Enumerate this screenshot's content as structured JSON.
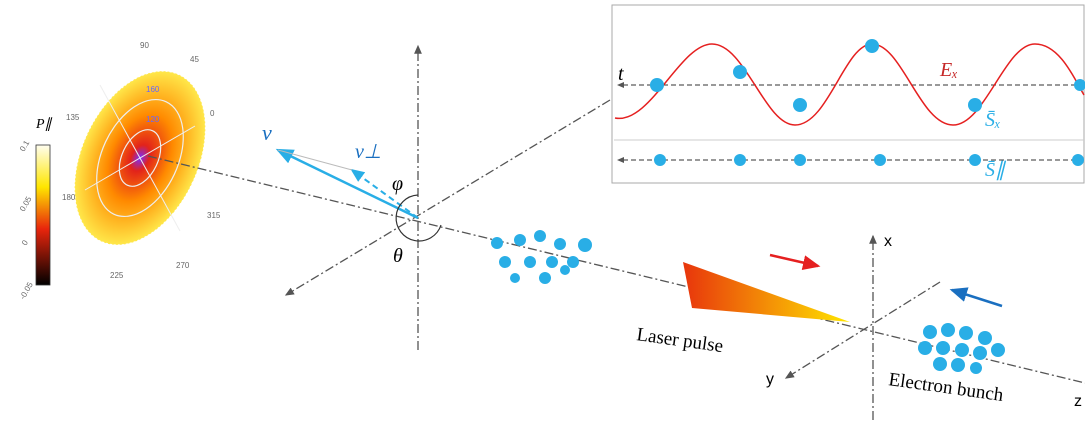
{
  "colorbar": {
    "label": "P∥",
    "ticks": [
      "0.1",
      "0.05",
      "0",
      "-0.05"
    ]
  },
  "polar": {
    "angle_labels": [
      "90",
      "45",
      "0",
      "315",
      "270",
      "225",
      "180",
      "135"
    ],
    "radial_labels": [
      "160",
      "120"
    ]
  },
  "vectors": {
    "v": "v",
    "v_perp": "v⊥",
    "phi": "φ",
    "theta": "θ"
  },
  "axes": {
    "x": "x",
    "y": "y",
    "z": "z"
  },
  "labels": {
    "laser": "Laser pulse",
    "bunch": "Electron bunch"
  },
  "inset": {
    "t": "t",
    "field": "Eₓ",
    "spin_x": "S̄ₓ",
    "spin_par": "S̄∥"
  }
}
